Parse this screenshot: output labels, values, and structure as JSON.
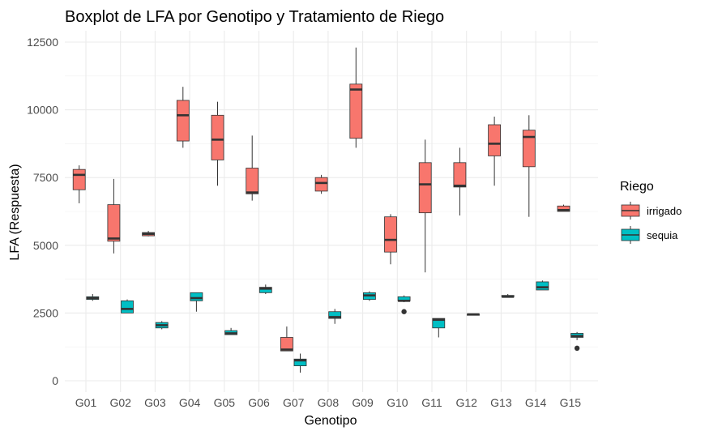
{
  "chart_data": {
    "type": "boxplot",
    "title": "Boxplot de LFA por Genotipo y Tratamiento de Riego",
    "xlabel": "Genotipo",
    "ylabel": "LFA (Respuesta)",
    "ylim": [
      -500,
      13000
    ],
    "yticks": [
      0,
      2500,
      5000,
      7500,
      10000,
      12500
    ],
    "ytick_labels": [
      "0",
      "2500",
      "5000",
      "7500",
      "10000",
      "12500"
    ],
    "grid": true,
    "legend": {
      "title": "Riego",
      "position": "right"
    },
    "categories": [
      "G01",
      "G02",
      "G03",
      "G04",
      "G05",
      "G06",
      "G07",
      "G08",
      "G09",
      "G10",
      "G11",
      "G12",
      "G13",
      "G14",
      "G15"
    ],
    "series": [
      {
        "name": "irrigado",
        "color": "#F8766D",
        "boxes": [
          {
            "min": 6550,
            "q1": 7050,
            "median": 7600,
            "q3": 7800,
            "max": 7950,
            "outliers": []
          },
          {
            "min": 4700,
            "q1": 5150,
            "median": 5250,
            "q3": 6500,
            "max": 7450,
            "outliers": []
          },
          {
            "min": 5330,
            "q1": 5350,
            "median": 5420,
            "q3": 5470,
            "max": 5530,
            "outliers": []
          },
          {
            "min": 8600,
            "q1": 8850,
            "median": 9800,
            "q3": 10350,
            "max": 10850,
            "outliers": []
          },
          {
            "min": 7200,
            "q1": 8150,
            "median": 8900,
            "q3": 9800,
            "max": 10300,
            "outliers": []
          },
          {
            "min": 6650,
            "q1": 6900,
            "median": 6950,
            "q3": 7850,
            "max": 9050,
            "outliers": []
          },
          {
            "min": 1100,
            "q1": 1100,
            "median": 1150,
            "q3": 1600,
            "max": 2000,
            "outliers": []
          },
          {
            "min": 6900,
            "q1": 7000,
            "median": 7300,
            "q3": 7500,
            "max": 7600,
            "outliers": []
          },
          {
            "min": 8600,
            "q1": 8950,
            "median": 10750,
            "q3": 10950,
            "max": 12300,
            "outliers": []
          },
          {
            "min": 4300,
            "q1": 4750,
            "median": 5200,
            "q3": 6050,
            "max": 6150,
            "outliers": []
          },
          {
            "min": 4000,
            "q1": 6200,
            "median": 7250,
            "q3": 8050,
            "max": 8900,
            "outliers": []
          },
          {
            "min": 6100,
            "q1": 7150,
            "median": 7200,
            "q3": 8050,
            "max": 8600,
            "outliers": []
          },
          {
            "min": 7200,
            "q1": 8300,
            "median": 8750,
            "q3": 9450,
            "max": 9750,
            "outliers": []
          },
          {
            "min": 6050,
            "q1": 7900,
            "median": 9000,
            "q3": 9250,
            "max": 9800,
            "outliers": []
          },
          {
            "min": 6250,
            "q1": 6250,
            "median": 6300,
            "q3": 6450,
            "max": 6500,
            "outliers": []
          }
        ]
      },
      {
        "name": "sequia",
        "color": "#00BFC4",
        "boxes": [
          {
            "min": 2950,
            "q1": 3000,
            "median": 3050,
            "q3": 3100,
            "max": 3200,
            "outliers": []
          },
          {
            "min": 2500,
            "q1": 2500,
            "median": 2650,
            "q3": 2950,
            "max": 3000,
            "outliers": []
          },
          {
            "min": 1900,
            "q1": 1950,
            "median": 2050,
            "q3": 2150,
            "max": 2200,
            "outliers": []
          },
          {
            "min": 2550,
            "q1": 2950,
            "median": 3050,
            "q3": 3250,
            "max": 3250,
            "outliers": []
          },
          {
            "min": 1700,
            "q1": 1700,
            "median": 1750,
            "q3": 1850,
            "max": 1950,
            "outliers": []
          },
          {
            "min": 3200,
            "q1": 3250,
            "median": 3400,
            "q3": 3450,
            "max": 3550,
            "outliers": []
          },
          {
            "min": 300,
            "q1": 550,
            "median": 750,
            "q3": 800,
            "max": 1000,
            "outliers": []
          },
          {
            "min": 2100,
            "q1": 2300,
            "median": 2350,
            "q3": 2550,
            "max": 2650,
            "outliers": []
          },
          {
            "min": 2950,
            "q1": 3000,
            "median": 3150,
            "q3": 3250,
            "max": 3300,
            "outliers": []
          },
          {
            "min": 2900,
            "q1": 2950,
            "median": 2950,
            "q3": 3100,
            "max": 3150,
            "outliers": [
              2550
            ]
          },
          {
            "min": 1600,
            "q1": 1950,
            "median": 2250,
            "q3": 2300,
            "max": 2300,
            "outliers": []
          },
          {
            "min": 2430,
            "q1": 2440,
            "median": 2450,
            "q3": 2460,
            "max": 2480,
            "outliers": []
          },
          {
            "min": 3100,
            "q1": 3100,
            "median": 3100,
            "q3": 3150,
            "max": 3200,
            "outliers": []
          },
          {
            "min": 3350,
            "q1": 3350,
            "median": 3450,
            "q3": 3650,
            "max": 3700,
            "outliers": []
          },
          {
            "min": 1500,
            "q1": 1600,
            "median": 1650,
            "q3": 1750,
            "max": 1800,
            "outliers": [
              1200
            ]
          }
        ]
      }
    ]
  }
}
